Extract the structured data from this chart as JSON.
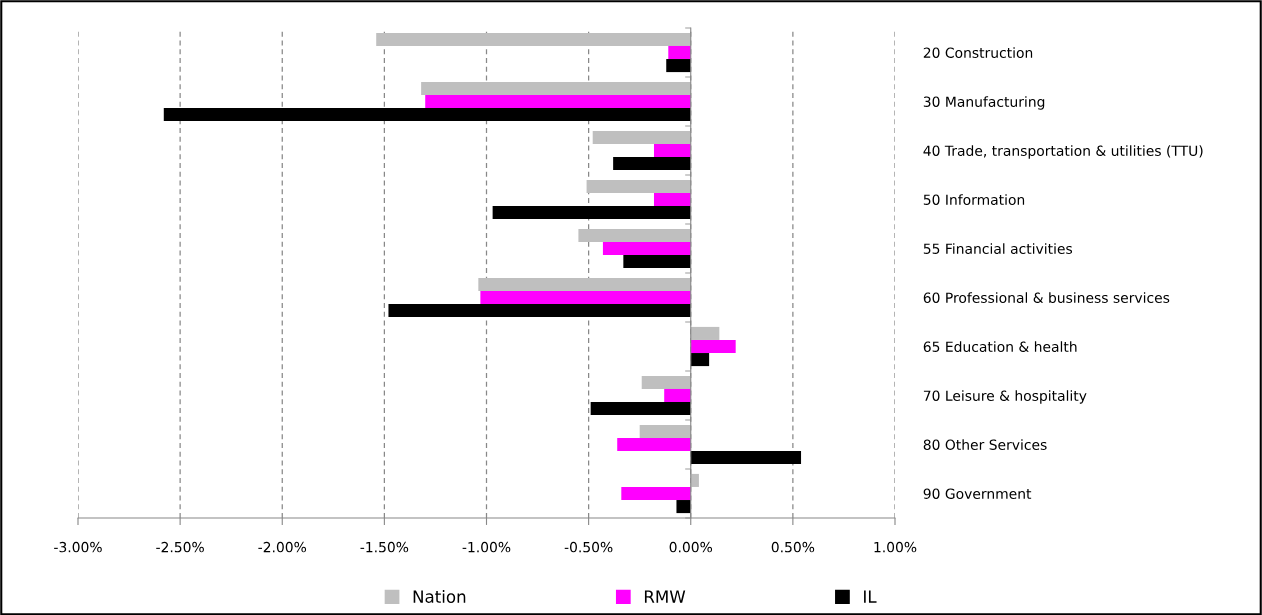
{
  "chart_data": {
    "type": "bar",
    "orientation": "horizontal",
    "categories": [
      "20 Construction",
      "30 Manufacturing",
      "40 Trade, transportation & utilities (TTU)",
      "50 Information",
      "55 Financial activities",
      "60 Professional & business services",
      "65 Education & health",
      "70 Leisure & hospitality",
      "80 Other Services",
      "90 Government"
    ],
    "series": [
      {
        "name": "Nation",
        "color": "#bfbfbf",
        "values": [
          -1.54,
          -1.32,
          -0.48,
          -0.51,
          -0.55,
          -1.04,
          0.14,
          -0.24,
          -0.25,
          0.04
        ]
      },
      {
        "name": "RMW",
        "color": "#ff00ff",
        "values": [
          -0.11,
          -1.3,
          -0.18,
          -0.18,
          -0.43,
          -1.03,
          0.22,
          -0.13,
          -0.36,
          -0.34
        ]
      },
      {
        "name": "IL",
        "color": "#000000",
        "values": [
          -0.12,
          -2.58,
          -0.38,
          -0.97,
          -0.33,
          -1.48,
          0.09,
          -0.49,
          0.54,
          -0.07
        ]
      }
    ],
    "xlim": [
      -3.0,
      1.0
    ],
    "xticks": [
      {
        "value": -3.0,
        "label": "-3.00%"
      },
      {
        "value": -2.5,
        "label": "-2.50%"
      },
      {
        "value": -2.0,
        "label": "-2.00%"
      },
      {
        "value": -1.5,
        "label": "-1.50%"
      },
      {
        "value": -1.0,
        "label": "-1.00%"
      },
      {
        "value": -0.5,
        "label": "-0.50%"
      },
      {
        "value": 0.0,
        "label": "0.00%"
      },
      {
        "value": 0.5,
        "label": "0.50%"
      },
      {
        "value": 1.0,
        "label": "1.00%"
      }
    ],
    "grid": "x",
    "legend": "bottom"
  }
}
